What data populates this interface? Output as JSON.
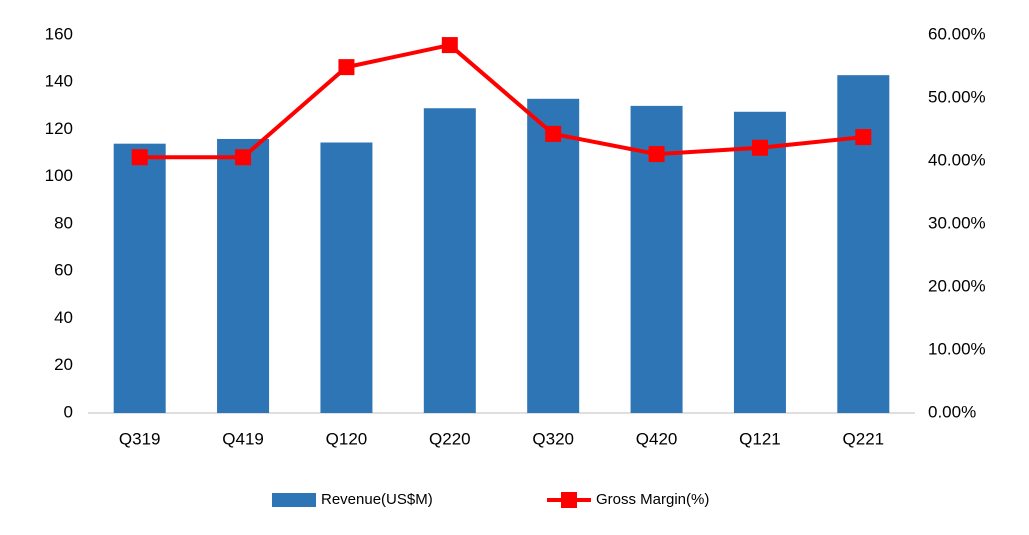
{
  "chart_data": {
    "type": "bar-line",
    "categories": [
      "Q319",
      "Q419",
      "Q120",
      "Q220",
      "Q320",
      "Q420",
      "Q121",
      "Q221"
    ],
    "series": [
      {
        "name": "Revenue(US$M)",
        "type": "bar",
        "color": "#2e75b6",
        "values": [
          114,
          116,
          114.5,
          129,
          133,
          130,
          127.5,
          143
        ]
      },
      {
        "name": "Gross Margin(%)",
        "type": "line",
        "axis": "y2",
        "color": "#ff0000",
        "values": [
          40.6,
          40.6,
          54.9,
          58.4,
          44.3,
          41.1,
          42.1,
          43.8
        ]
      }
    ],
    "ylim": [
      0,
      160
    ],
    "yticks": [
      0,
      20,
      40,
      60,
      80,
      100,
      120,
      140,
      160
    ],
    "y2lim": [
      0,
      60
    ],
    "y2ticks": [
      {
        "value": 0,
        "label": "0.00%"
      },
      {
        "value": 10,
        "label": "10.00%"
      },
      {
        "value": 20,
        "label": "20.00%"
      },
      {
        "value": 30,
        "label": "30.00%"
      },
      {
        "value": 40,
        "label": "40.00%"
      },
      {
        "value": 50,
        "label": "50.00%"
      },
      {
        "value": 60,
        "label": "60.00%"
      }
    ],
    "grid": false,
    "legend": "bottom"
  }
}
